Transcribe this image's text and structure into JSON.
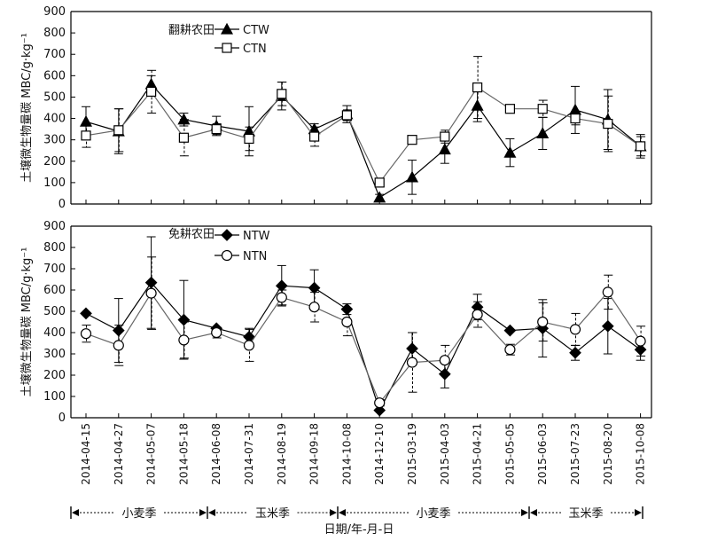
{
  "chart_data": {
    "type": "line",
    "x_dates": [
      "2014-04-15",
      "2014-04-27",
      "2014-05-07",
      "2014-05-18",
      "2014-06-08",
      "2014-07-31",
      "2014-08-19",
      "2014-09-18",
      "2014-10-08",
      "2014-12-10",
      "2015-03-19",
      "2015-04-03",
      "2015-04-21",
      "2015-05-05",
      "2015-06-03",
      "2015-07-23",
      "2015-08-20",
      "2015-10-08"
    ],
    "xlabel": "日期/年-月-日",
    "seasons": [
      "小麦季",
      "玉米季",
      "小麦季",
      "玉米季"
    ],
    "panels": [
      {
        "legend_title": "翻耕农田",
        "ylabel": "土壤微生物量碳 MBC/g·kg⁻¹",
        "ylim": [
          0,
          900
        ],
        "yticks": [
          0,
          100,
          200,
          300,
          400,
          500,
          600,
          700,
          800,
          900
        ],
        "series": [
          {
            "name": "CTW",
            "marker": "triangle-filled",
            "values": [
              385,
              340,
              560,
              395,
              365,
              340,
              505,
              350,
              420,
              30,
              125,
              255,
              460,
              240,
              330,
              440,
              395,
              270
            ],
            "errors": [
              70,
              105,
              40,
              30,
              45,
              115,
              65,
              25,
              40,
              15,
              80,
              65,
              75,
              65,
              75,
              110,
              140,
              55
            ]
          },
          {
            "name": "CTN",
            "marker": "square-open",
            "values": [
              320,
              345,
              525,
              310,
              350,
              305,
              515,
              315,
              415,
              100,
              300,
              315,
              545,
              445,
              445,
              400,
              375,
              270
            ],
            "errors": [
              55,
              100,
              100,
              85,
              25,
              55,
              55,
              45,
              25,
              20,
              0,
              30,
              145,
              0,
              40,
              30,
              130,
              45
            ]
          }
        ]
      },
      {
        "legend_title": "免耕农田",
        "ylabel": "土壤微生物量碳 MBC/g·kg⁻¹",
        "ylim": [
          0,
          900
        ],
        "yticks": [
          0,
          100,
          200,
          300,
          400,
          500,
          600,
          700,
          800,
          900
        ],
        "series": [
          {
            "name": "NTW",
            "marker": "diamond-filled",
            "values": [
              490,
              410,
              635,
              460,
              420,
              380,
              620,
              610,
              510,
              35,
              325,
              205,
              520,
              410,
              420,
              305,
              430,
              320
            ],
            "errors": [
              0,
              150,
              215,
              185,
              0,
              40,
              95,
              85,
              25,
              0,
              75,
              65,
              60,
              0,
              135,
              35,
              130,
              50
            ]
          },
          {
            "name": "NTN",
            "marker": "circle-open",
            "values": [
              395,
              340,
              585,
              365,
              400,
              340,
              565,
              520,
              450,
              70,
              260,
              270,
              485,
              320,
              450,
              415,
              590,
              360
            ],
            "errors": [
              40,
              95,
              170,
              85,
              25,
              75,
              35,
              70,
              65,
              15,
              140,
              70,
              60,
              25,
              90,
              75,
              80,
              70
            ]
          }
        ]
      }
    ]
  }
}
